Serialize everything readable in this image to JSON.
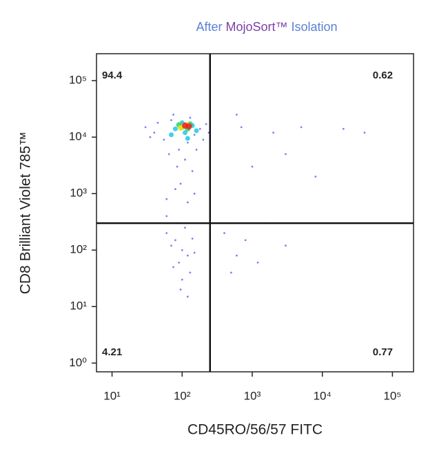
{
  "chart_data": {
    "type": "scatter",
    "title_parts": [
      {
        "text": "After",
        "color": "#5b7fd6"
      },
      {
        "text": "MojoSort™",
        "color": "#7b3fa8"
      },
      {
        "text": "Isolation",
        "color": "#5b7fd6"
      }
    ],
    "x_label": "CD45RO/56/57 FITC",
    "y_label": "CD8 Brilliant Violet 785™",
    "log_x": true,
    "log_y": true,
    "xlim": [
      6,
      200000
    ],
    "ylim": [
      0.7,
      300000
    ],
    "xticks": [
      {
        "value": 10,
        "label": "10¹"
      },
      {
        "value": 100,
        "label": "10²"
      },
      {
        "value": 1000,
        "label": "10³"
      },
      {
        "value": 10000,
        "label": "10⁴"
      },
      {
        "value": 100000,
        "label": "10⁵"
      }
    ],
    "yticks": [
      {
        "value": 1,
        "label": "10⁰"
      },
      {
        "value": 10,
        "label": "10¹"
      },
      {
        "value": 100,
        "label": "10²"
      },
      {
        "value": 1000,
        "label": "10³"
      },
      {
        "value": 10000,
        "label": "10⁴"
      },
      {
        "value": 100000,
        "label": "10⁵"
      }
    ],
    "gates": {
      "x": 250,
      "y": 300
    },
    "quadrant_values": [
      94.4,
      0.62,
      4.21,
      0.77
    ],
    "series": [
      {
        "color": "#3a4ff0",
        "x": [
          40,
          55,
          70,
          90,
          120,
          150,
          180,
          200,
          30,
          45,
          65,
          85,
          110,
          140,
          160,
          220,
          240,
          35,
          75,
          130,
          95,
          60,
          80,
          120,
          150,
          60,
          80,
          100,
          120,
          90,
          110,
          70,
          130,
          100,
          85,
          140,
          75,
          95,
          120,
          60,
          150,
          400,
          800,
          1500,
          600,
          3000,
          500,
          1200,
          700,
          2000,
          5000,
          20000,
          40000,
          1000,
          3000,
          8000,
          600,
          400
        ],
        "values": [
          12000,
          9000,
          20000,
          6000,
          8000,
          11000,
          14000,
          9000,
          15000,
          18000,
          5000,
          3000,
          4000,
          2500,
          6000,
          17000,
          12000,
          10000,
          25000,
          22000,
          1500,
          800,
          1200,
          700,
          1000,
          200,
          150,
          100,
          80,
          60,
          250,
          120,
          40,
          30,
          300,
          160,
          50,
          20,
          15,
          400,
          90,
          200,
          150,
          300,
          80,
          120,
          40,
          60,
          15000,
          12000,
          15000,
          14000,
          12000,
          3000,
          5000,
          2000,
          25000,
          300
        ]
      },
      {
        "color": "#20c8e8",
        "x": [
          80,
          110,
          140,
          100,
          70,
          160,
          120
        ],
        "values": [
          14000,
          12000,
          16000,
          18000,
          11000,
          13000,
          9500
        ]
      },
      {
        "color": "#30d060",
        "x": [
          100,
          120,
          90,
          130
        ],
        "values": [
          15000,
          14000,
          16500,
          17000
        ]
      },
      {
        "color": "#f0e020",
        "x": [
          105,
          115,
          95
        ],
        "values": [
          15500,
          16500,
          14500
        ]
      },
      {
        "color": "#f02020",
        "x": [
          110,
          125
        ],
        "values": [
          16000,
          15500
        ]
      }
    ]
  }
}
